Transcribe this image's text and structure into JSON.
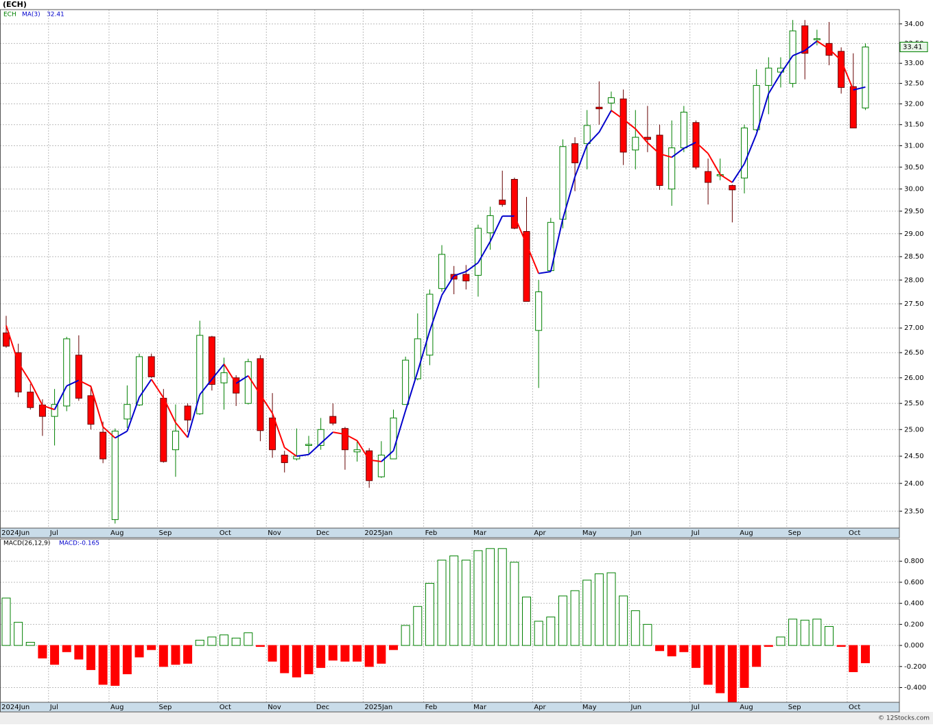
{
  "chart_data": [
    {
      "type": "candlestick",
      "title": "(ECH)",
      "symbol": "ECH",
      "categories": [
        "2024Jun",
        null,
        null,
        null,
        "Jul",
        null,
        null,
        null,
        null,
        "Aug",
        null,
        null,
        null,
        "Sep",
        null,
        null,
        null,
        null,
        "Oct",
        null,
        null,
        null,
        "Nov",
        null,
        null,
        null,
        "Dec",
        null,
        null,
        null,
        "2025Jan",
        null,
        null,
        null,
        null,
        "Feb",
        null,
        null,
        null,
        "Mar",
        null,
        null,
        null,
        null,
        "Apr",
        null,
        null,
        null,
        "May",
        null,
        null,
        null,
        "Jun",
        null,
        null,
        null,
        null,
        "Jul",
        null,
        null,
        null,
        "Aug",
        null,
        null,
        null,
        "Sep",
        null,
        null,
        null,
        null,
        "Oct",
        null
      ],
      "open": [
        26.9,
        26.5,
        25.72,
        25.47,
        25.25,
        25.45,
        26.45,
        25.65,
        24.95,
        23.35,
        25.2,
        25.47,
        26.42,
        25.6,
        24.62,
        25.45,
        25.3,
        26.82,
        25.9,
        26.0,
        25.5,
        26.38,
        25.22,
        24.52,
        24.45,
        24.7,
        24.7,
        25.25,
        25.02,
        24.58,
        24.6,
        24.12,
        24.45,
        25.48,
        25.98,
        26.45,
        27.82,
        28.12,
        28.12,
        28.1,
        29.02,
        29.75,
        30.22,
        29.05,
        26.95,
        28.2,
        29.32,
        31.05,
        31.05,
        31.92,
        32.02,
        32.12,
        30.9,
        31.2,
        31.25,
        30.0,
        30.95,
        31.55,
        30.4,
        30.3,
        30.08,
        30.25,
        31.38,
        32.45,
        32.78,
        32.5,
        33.95,
        33.6,
        33.5,
        33.3,
        32.42,
        31.9
      ],
      "high": [
        27.25,
        26.68,
        25.88,
        25.58,
        25.78,
        26.82,
        26.85,
        25.85,
        25.15,
        25.02,
        25.85,
        26.48,
        26.48,
        25.78,
        25.48,
        25.5,
        27.15,
        26.84,
        26.4,
        26.05,
        26.38,
        26.45,
        25.7,
        24.6,
        25.02,
        24.88,
        25.22,
        25.5,
        25.05,
        24.8,
        24.65,
        24.78,
        25.38,
        26.42,
        27.3,
        27.8,
        28.75,
        28.3,
        28.32,
        29.2,
        29.6,
        30.42,
        30.26,
        29.82,
        28.0,
        29.35,
        31.15,
        31.2,
        31.85,
        32.55,
        32.3,
        32.35,
        31.85,
        31.95,
        31.5,
        31.6,
        31.95,
        31.6,
        30.7,
        30.7,
        30.1,
        31.5,
        32.85,
        33.15,
        33.15,
        34.1,
        34.1,
        33.85,
        34.05,
        33.4,
        33.25,
        33.5
      ],
      "low": [
        26.6,
        25.62,
        25.38,
        24.88,
        24.7,
        25.35,
        25.55,
        25.0,
        24.37,
        23.28,
        25.03,
        25.45,
        26.0,
        24.38,
        24.12,
        24.95,
        25.28,
        25.75,
        25.38,
        25.45,
        25.48,
        24.78,
        24.47,
        24.2,
        24.42,
        24.55,
        24.62,
        25.08,
        24.25,
        24.4,
        23.92,
        24.1,
        24.45,
        25.48,
        25.95,
        26.25,
        27.75,
        27.7,
        27.8,
        27.65,
        28.65,
        29.6,
        29.1,
        27.55,
        25.8,
        28.2,
        29.12,
        29.95,
        30.45,
        31.5,
        31.8,
        30.55,
        30.45,
        30.85,
        29.98,
        29.62,
        30.85,
        30.45,
        29.65,
        30.2,
        29.25,
        29.9,
        31.35,
        31.75,
        32.4,
        32.4,
        32.6,
        33.45,
        32.95,
        32.25,
        31.42,
        31.85
      ],
      "close": [
        26.63,
        25.72,
        25.42,
        25.25,
        25.48,
        26.78,
        25.6,
        25.1,
        24.45,
        24.97,
        25.48,
        26.42,
        26.02,
        24.4,
        24.97,
        25.18,
        26.85,
        25.87,
        26.1,
        25.7,
        26.32,
        24.98,
        24.62,
        24.38,
        24.5,
        24.72,
        25.0,
        25.12,
        24.62,
        24.62,
        24.05,
        24.52,
        25.22,
        26.35,
        26.78,
        27.7,
        28.55,
        28.02,
        27.98,
        29.12,
        29.4,
        29.65,
        29.12,
        27.55,
        27.75,
        29.25,
        30.98,
        30.6,
        31.48,
        31.88,
        32.15,
        30.85,
        31.2,
        31.15,
        30.08,
        30.95,
        31.8,
        30.5,
        30.15,
        30.33,
        29.98,
        31.42,
        32.45,
        32.88,
        32.88,
        33.82,
        33.25,
        33.62,
        33.2,
        32.4,
        31.42,
        33.41
      ],
      "up_color": "#008000",
      "down_color": "#ff0000",
      "series": [
        {
          "name": "MA(3)",
          "color": "#0000cc",
          "down_color": "#ff0000",
          "last_value": 32.41,
          "values": [
            27.05,
            26.3,
            25.92,
            25.46,
            25.38,
            25.84,
            25.95,
            25.83,
            25.05,
            24.84,
            24.97,
            25.62,
            25.97,
            25.61,
            25.13,
            24.85,
            25.67,
            25.97,
            26.27,
            25.89,
            26.04,
            25.67,
            25.31,
            24.66,
            24.5,
            24.53,
            24.74,
            24.95,
            24.91,
            24.79,
            24.43,
            24.4,
            24.6,
            25.36,
            26.12,
            26.94,
            27.68,
            28.09,
            28.18,
            28.37,
            28.83,
            29.39,
            29.39,
            28.77,
            28.14,
            28.18,
            29.33,
            30.28,
            31.02,
            31.32,
            31.84,
            31.63,
            31.4,
            31.07,
            30.81,
            30.73,
            30.94,
            31.08,
            30.82,
            30.33,
            30.15,
            30.58,
            31.28,
            32.25,
            32.74,
            33.19,
            33.32,
            33.56,
            33.36,
            33.07,
            32.34,
            32.41
          ]
        }
      ],
      "last_price": {
        "value": 33.41,
        "label": "33.41"
      },
      "log_scale": true,
      "grid": true,
      "ylim": [
        23.2,
        34.37
      ],
      "yticks": [
        {
          "value": 23.5,
          "label": "23.50"
        },
        {
          "value": 24,
          "label": "24.00"
        },
        {
          "value": 24.5,
          "label": "24.50"
        },
        {
          "value": 25,
          "label": "25.00"
        },
        {
          "value": 25.5,
          "label": "25.50"
        },
        {
          "value": 26,
          "label": "26.00"
        },
        {
          "value": 26.5,
          "label": "26.50"
        },
        {
          "value": 27,
          "label": "27.00"
        },
        {
          "value": 27.5,
          "label": "27.50"
        },
        {
          "value": 28,
          "label": "28.00"
        },
        {
          "value": 28.5,
          "label": "28.50"
        },
        {
          "value": 29,
          "label": "29.00"
        },
        {
          "value": 29.5,
          "label": "29.50"
        },
        {
          "value": 30,
          "label": "30.00"
        },
        {
          "value": 30.5,
          "label": "30.50"
        },
        {
          "value": 31,
          "label": "31.00"
        },
        {
          "value": 31.5,
          "label": "31.50"
        },
        {
          "value": 32,
          "label": "32.00"
        },
        {
          "value": 32.5,
          "label": "32.50"
        },
        {
          "value": 33,
          "label": "33.00"
        },
        {
          "value": 33.5,
          "label": "33.50"
        },
        {
          "value": 34,
          "label": "34.00"
        }
      ]
    },
    {
      "type": "bar",
      "title": "MACD(26,12,9)",
      "current_label": "MACD:-0.165",
      "up_color": "#008000",
      "down_color": "#ff0000",
      "values": [
        0.45,
        0.22,
        0.03,
        -0.12,
        -0.18,
        -0.06,
        -0.13,
        -0.23,
        -0.37,
        -0.38,
        -0.27,
        -0.11,
        -0.04,
        -0.2,
        -0.18,
        -0.17,
        0.05,
        0.08,
        0.1,
        0.07,
        0.12,
        -0.01,
        -0.15,
        -0.26,
        -0.3,
        -0.27,
        -0.21,
        -0.14,
        -0.15,
        -0.15,
        -0.2,
        -0.17,
        -0.04,
        0.19,
        0.37,
        0.59,
        0.81,
        0.85,
        0.81,
        0.9,
        0.92,
        0.92,
        0.79,
        0.46,
        0.23,
        0.27,
        0.47,
        0.52,
        0.62,
        0.68,
        0.69,
        0.47,
        0.33,
        0.2,
        -0.05,
        -0.1,
        -0.06,
        -0.21,
        -0.37,
        -0.45,
        -0.54,
        -0.4,
        -0.2,
        -0.01,
        0.08,
        0.25,
        0.24,
        0.25,
        0.18,
        -0.01,
        -0.25,
        -0.165
      ],
      "ylim": [
        -0.54,
        1.01
      ],
      "grid": true,
      "yticks": [
        {
          "value": -0.4,
          "label": "-0.400"
        },
        {
          "value": -0.2,
          "label": "-0.200"
        },
        {
          "value": 0,
          "label": "0.000"
        },
        {
          "value": 0.2,
          "label": "0.200"
        },
        {
          "value": 0.4,
          "label": "0.400"
        },
        {
          "value": 0.6,
          "label": "0.600"
        },
        {
          "value": 0.8,
          "label": "0.800"
        }
      ]
    }
  ],
  "watermark": "© 12Stocks.com"
}
